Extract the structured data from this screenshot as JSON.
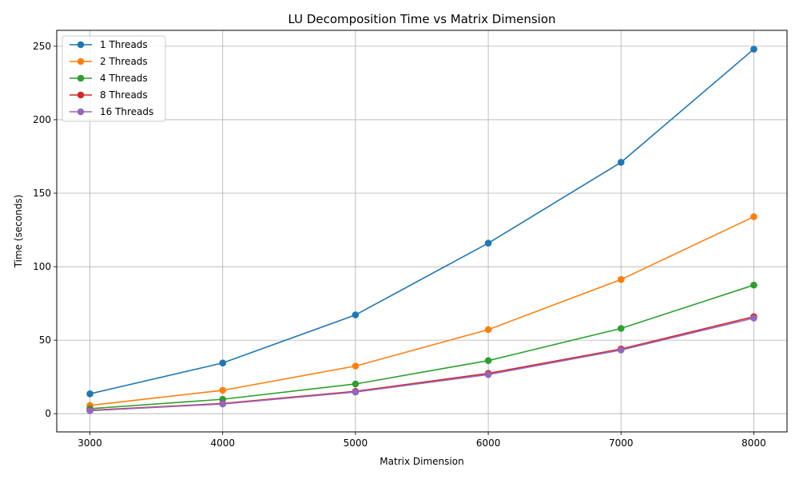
{
  "chart_data": {
    "type": "line",
    "title": "LU Decomposition Time vs Matrix Dimension",
    "xlabel": "Matrix Dimension",
    "ylabel": "Time (seconds)",
    "x": [
      3000,
      4000,
      5000,
      6000,
      7000,
      8000
    ],
    "xlim": [
      2750,
      8250
    ],
    "ylim": [
      -12.4,
      260.8
    ],
    "xticks": [
      3000,
      4000,
      5000,
      6000,
      7000,
      8000
    ],
    "yticks": [
      0,
      50,
      100,
      150,
      200,
      250
    ],
    "grid": true,
    "legend_position": "top-left",
    "series": [
      {
        "name": "1 Threads",
        "color": "#1f77b4",
        "values": [
          13.5,
          34.5,
          67.2,
          116.0,
          171.0,
          248.0
        ]
      },
      {
        "name": "2 Threads",
        "color": "#ff7f0e",
        "values": [
          5.6,
          15.9,
          32.4,
          57.2,
          91.3,
          134.0
        ]
      },
      {
        "name": "4 Threads",
        "color": "#2ca02c",
        "values": [
          3.4,
          9.8,
          20.2,
          36.1,
          58.0,
          87.5
        ]
      },
      {
        "name": "8 Threads",
        "color": "#d62728",
        "values": [
          2.3,
          6.9,
          15.2,
          27.4,
          44.0,
          66.0
        ]
      },
      {
        "name": "16 Threads",
        "color": "#9467bd",
        "values": [
          2.0,
          6.6,
          14.7,
          26.6,
          43.3,
          65.0
        ]
      }
    ]
  }
}
